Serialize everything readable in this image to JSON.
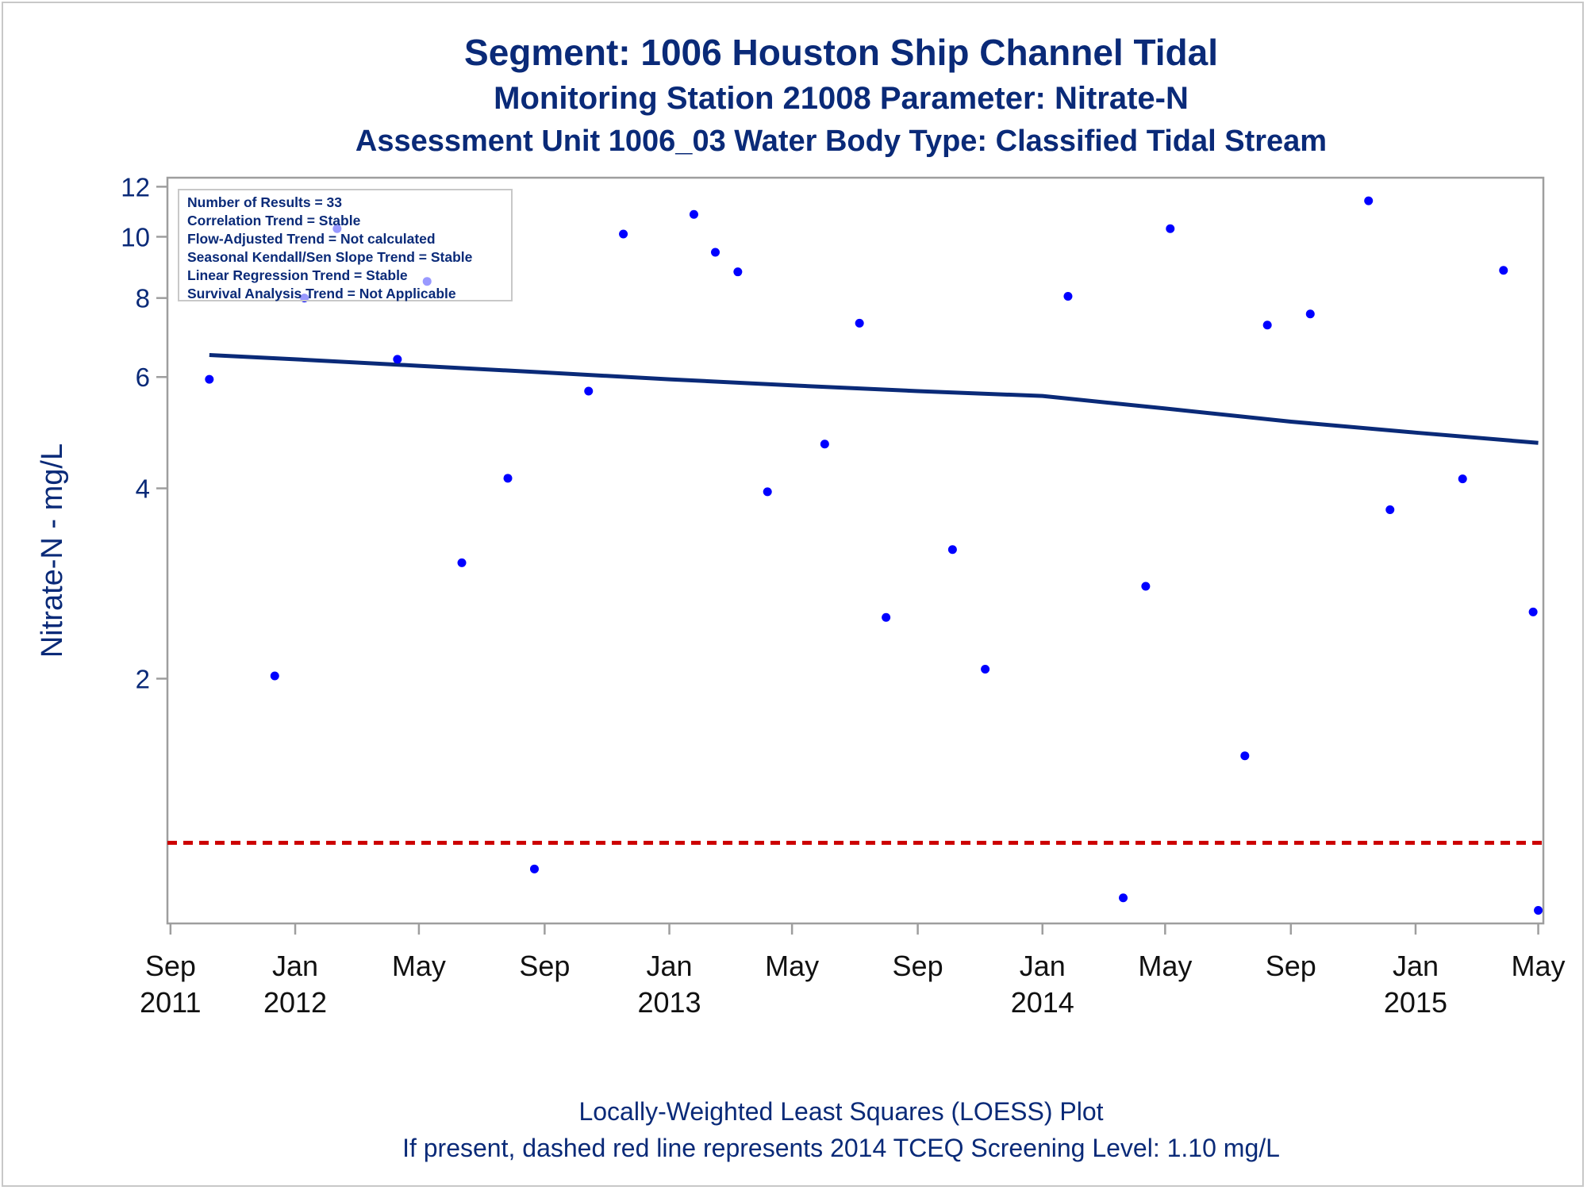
{
  "titles": {
    "line1": "Segment: 1006  Houston Ship Channel Tidal",
    "line2": "Monitoring Station 21008 Parameter: Nitrate-N",
    "line3": "Assessment Unit 1006_03   Water Body Type: Classified Tidal Stream"
  },
  "stats": [
    "Number of Results = 33",
    "Correlation Trend = Stable",
    "Flow-Adjusted Trend = Not calculated",
    "Seasonal Kendall/Sen Slope Trend = Stable",
    "Linear Regression Trend = Stable",
    "Survival Analysis Trend = Not Applicable"
  ],
  "footnotes": {
    "line1": "Locally-Weighted Least Squares (LOESS) Plot",
    "line2": "If present, dashed red line represents 2014 TCEQ Screening Level: 1.10 mg/L"
  },
  "colors": {
    "title": "#0a2a78",
    "points": "#0000ff",
    "loess": "#0a2a78",
    "screening_line": "#cc0000",
    "axis": "#9e9e9e"
  },
  "chart_data": {
    "type": "scatter",
    "title": "Segment: 1006  Houston Ship Channel Tidal",
    "xlabel": "",
    "ylabel": "Nitrate-N - mg/L",
    "y_scale": "log",
    "ylim": [
      0.82,
      12.4
    ],
    "xlim": [
      "2011-08-29",
      "2015-05-06"
    ],
    "y_ticks": [
      2,
      4,
      6,
      8,
      10,
      12
    ],
    "x_ticks": [
      {
        "date": "2011-09-01",
        "label": [
          "Sep",
          "2011"
        ]
      },
      {
        "date": "2012-01-01",
        "label": [
          "Jan",
          "2012"
        ]
      },
      {
        "date": "2012-05-01",
        "label": [
          "May",
          ""
        ]
      },
      {
        "date": "2012-09-01",
        "label": [
          "Sep",
          ""
        ]
      },
      {
        "date": "2013-01-01",
        "label": [
          "Jan",
          "2013"
        ]
      },
      {
        "date": "2013-05-01",
        "label": [
          "May",
          ""
        ]
      },
      {
        "date": "2013-09-01",
        "label": [
          "Sep",
          ""
        ]
      },
      {
        "date": "2014-01-01",
        "label": [
          "Jan",
          "2014"
        ]
      },
      {
        "date": "2014-05-01",
        "label": [
          "May",
          ""
        ]
      },
      {
        "date": "2014-09-01",
        "label": [
          "Sep",
          ""
        ]
      },
      {
        "date": "2015-01-01",
        "label": [
          "Jan",
          "2015"
        ]
      },
      {
        "date": "2015-05-01",
        "label": [
          "May",
          ""
        ]
      }
    ],
    "grid": false,
    "series": [
      {
        "type": "scatter",
        "points": [
          {
            "x": "2011-10-09",
            "y": 5.95
          },
          {
            "x": "2011-12-12",
            "y": 2.02
          },
          {
            "x": "2012-01-10",
            "y": 8.0
          },
          {
            "x": "2012-02-11",
            "y": 10.3
          },
          {
            "x": "2012-04-10",
            "y": 6.4
          },
          {
            "x": "2012-05-09",
            "y": 8.5
          },
          {
            "x": "2012-06-12",
            "y": 3.05
          },
          {
            "x": "2012-07-27",
            "y": 4.15
          },
          {
            "x": "2012-08-22",
            "y": 1.0
          },
          {
            "x": "2012-10-14",
            "y": 5.7
          },
          {
            "x": "2012-11-17",
            "y": 10.1
          },
          {
            "x": "2013-01-25",
            "y": 10.85
          },
          {
            "x": "2013-02-15",
            "y": 9.45
          },
          {
            "x": "2013-03-09",
            "y": 8.8
          },
          {
            "x": "2013-04-07",
            "y": 3.95
          },
          {
            "x": "2013-06-02",
            "y": 4.7
          },
          {
            "x": "2013-07-06",
            "y": 7.3
          },
          {
            "x": "2013-08-01",
            "y": 2.5
          },
          {
            "x": "2013-10-05",
            "y": 3.2
          },
          {
            "x": "2013-11-06",
            "y": 2.07
          },
          {
            "x": "2014-01-26",
            "y": 8.05
          },
          {
            "x": "2014-03-21",
            "y": 0.9
          },
          {
            "x": "2014-04-12",
            "y": 2.8
          },
          {
            "x": "2014-05-06",
            "y": 10.3
          },
          {
            "x": "2014-07-18",
            "y": 1.51
          },
          {
            "x": "2014-08-09",
            "y": 7.25
          },
          {
            "x": "2014-09-20",
            "y": 7.55
          },
          {
            "x": "2014-11-16",
            "y": 11.4
          },
          {
            "x": "2014-12-07",
            "y": 3.7
          },
          {
            "x": "2015-02-16",
            "y": 4.14
          },
          {
            "x": "2015-03-28",
            "y": 8.85
          },
          {
            "x": "2015-04-26",
            "y": 2.55
          },
          {
            "x": "2015-05-01",
            "y": 0.86
          }
        ]
      },
      {
        "type": "line",
        "points": [
          {
            "x": "2011-10-09",
            "y": 6.5
          },
          {
            "x": "2012-01-01",
            "y": 6.4
          },
          {
            "x": "2012-05-01",
            "y": 6.25
          },
          {
            "x": "2012-09-01",
            "y": 6.1
          },
          {
            "x": "2013-01-01",
            "y": 5.95
          },
          {
            "x": "2013-05-01",
            "y": 5.82
          },
          {
            "x": "2013-09-01",
            "y": 5.7
          },
          {
            "x": "2014-01-01",
            "y": 5.6
          },
          {
            "x": "2014-05-01",
            "y": 5.35
          },
          {
            "x": "2014-09-01",
            "y": 5.1
          },
          {
            "x": "2015-01-01",
            "y": 4.9
          },
          {
            "x": "2015-05-01",
            "y": 4.72
          }
        ]
      }
    ],
    "reference_line": {
      "y": 1.1,
      "style": "dashed"
    }
  }
}
